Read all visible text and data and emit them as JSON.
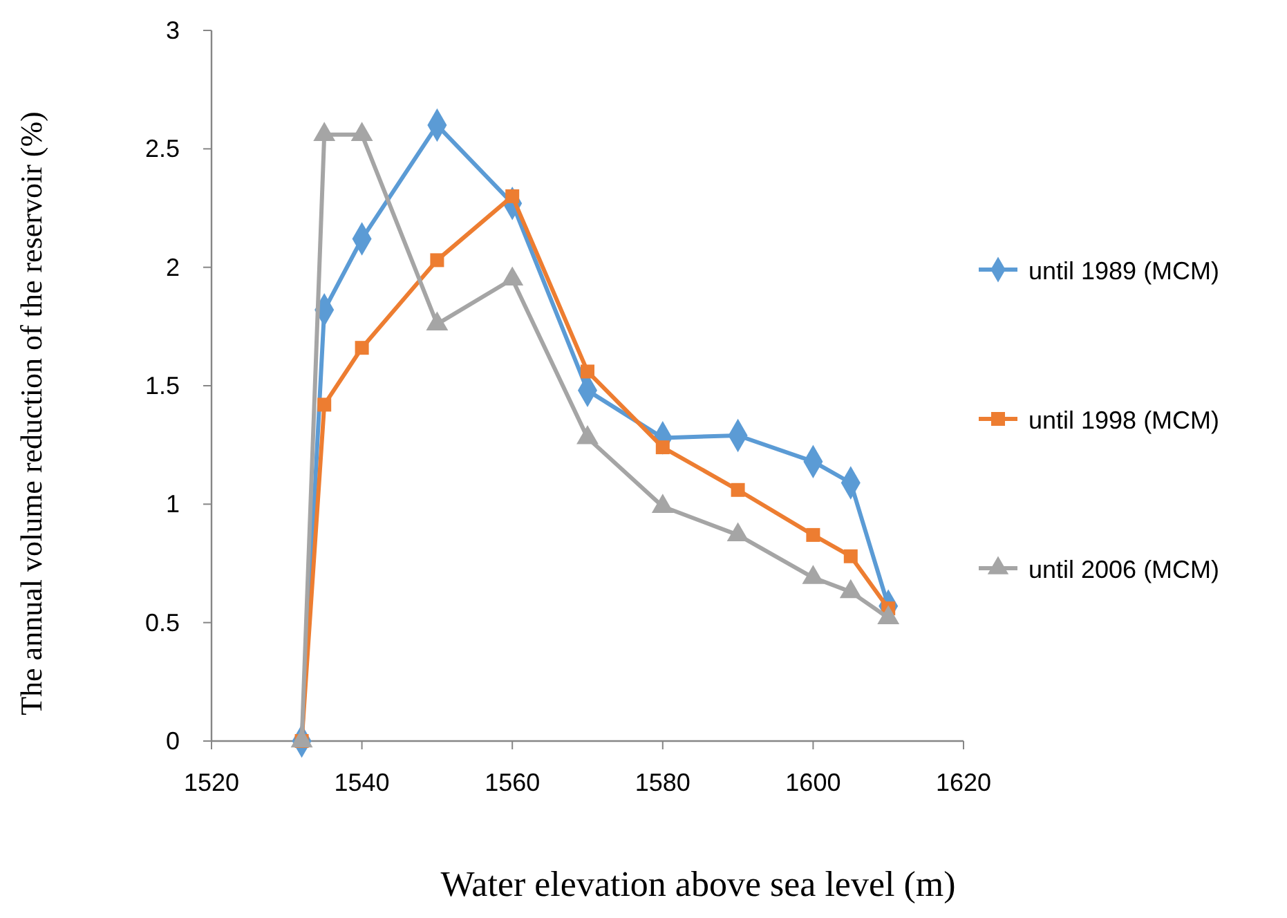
{
  "chart_data": {
    "type": "line",
    "xlabel": "Water elevation above sea level (m)",
    "ylabel": "The annual volume reduction of the reservoir (%)",
    "x": [
      1532,
      1535,
      1540,
      1550,
      1560,
      1570,
      1580,
      1590,
      1600,
      1605,
      1610
    ],
    "series": [
      {
        "name": "until 1989 (MCM)",
        "color": "#5b9bd5",
        "marker": "diamond",
        "values": [
          0,
          1.82,
          2.12,
          2.6,
          2.27,
          1.48,
          1.28,
          1.29,
          1.18,
          1.09,
          0.57
        ]
      },
      {
        "name": "until 1998 (MCM)",
        "color": "#ed7d31",
        "marker": "square",
        "values": [
          0,
          1.42,
          1.66,
          2.03,
          2.3,
          1.56,
          1.24,
          1.06,
          0.87,
          0.78,
          0.56
        ]
      },
      {
        "name": "until 2006 (MCM)",
        "color": "#a5a5a5",
        "marker": "triangle",
        "values": [
          0,
          2.56,
          2.56,
          1.76,
          1.95,
          1.28,
          0.99,
          0.87,
          0.69,
          0.63,
          0.52
        ]
      }
    ],
    "xlim": [
      1520,
      1620
    ],
    "xticks": [
      1520,
      1540,
      1560,
      1580,
      1600,
      1620
    ],
    "ylim": [
      0,
      3
    ],
    "yticks": [
      0,
      0.5,
      1,
      1.5,
      2,
      2.5,
      3
    ],
    "grid": false,
    "legend": "right",
    "line_style": "solid"
  }
}
